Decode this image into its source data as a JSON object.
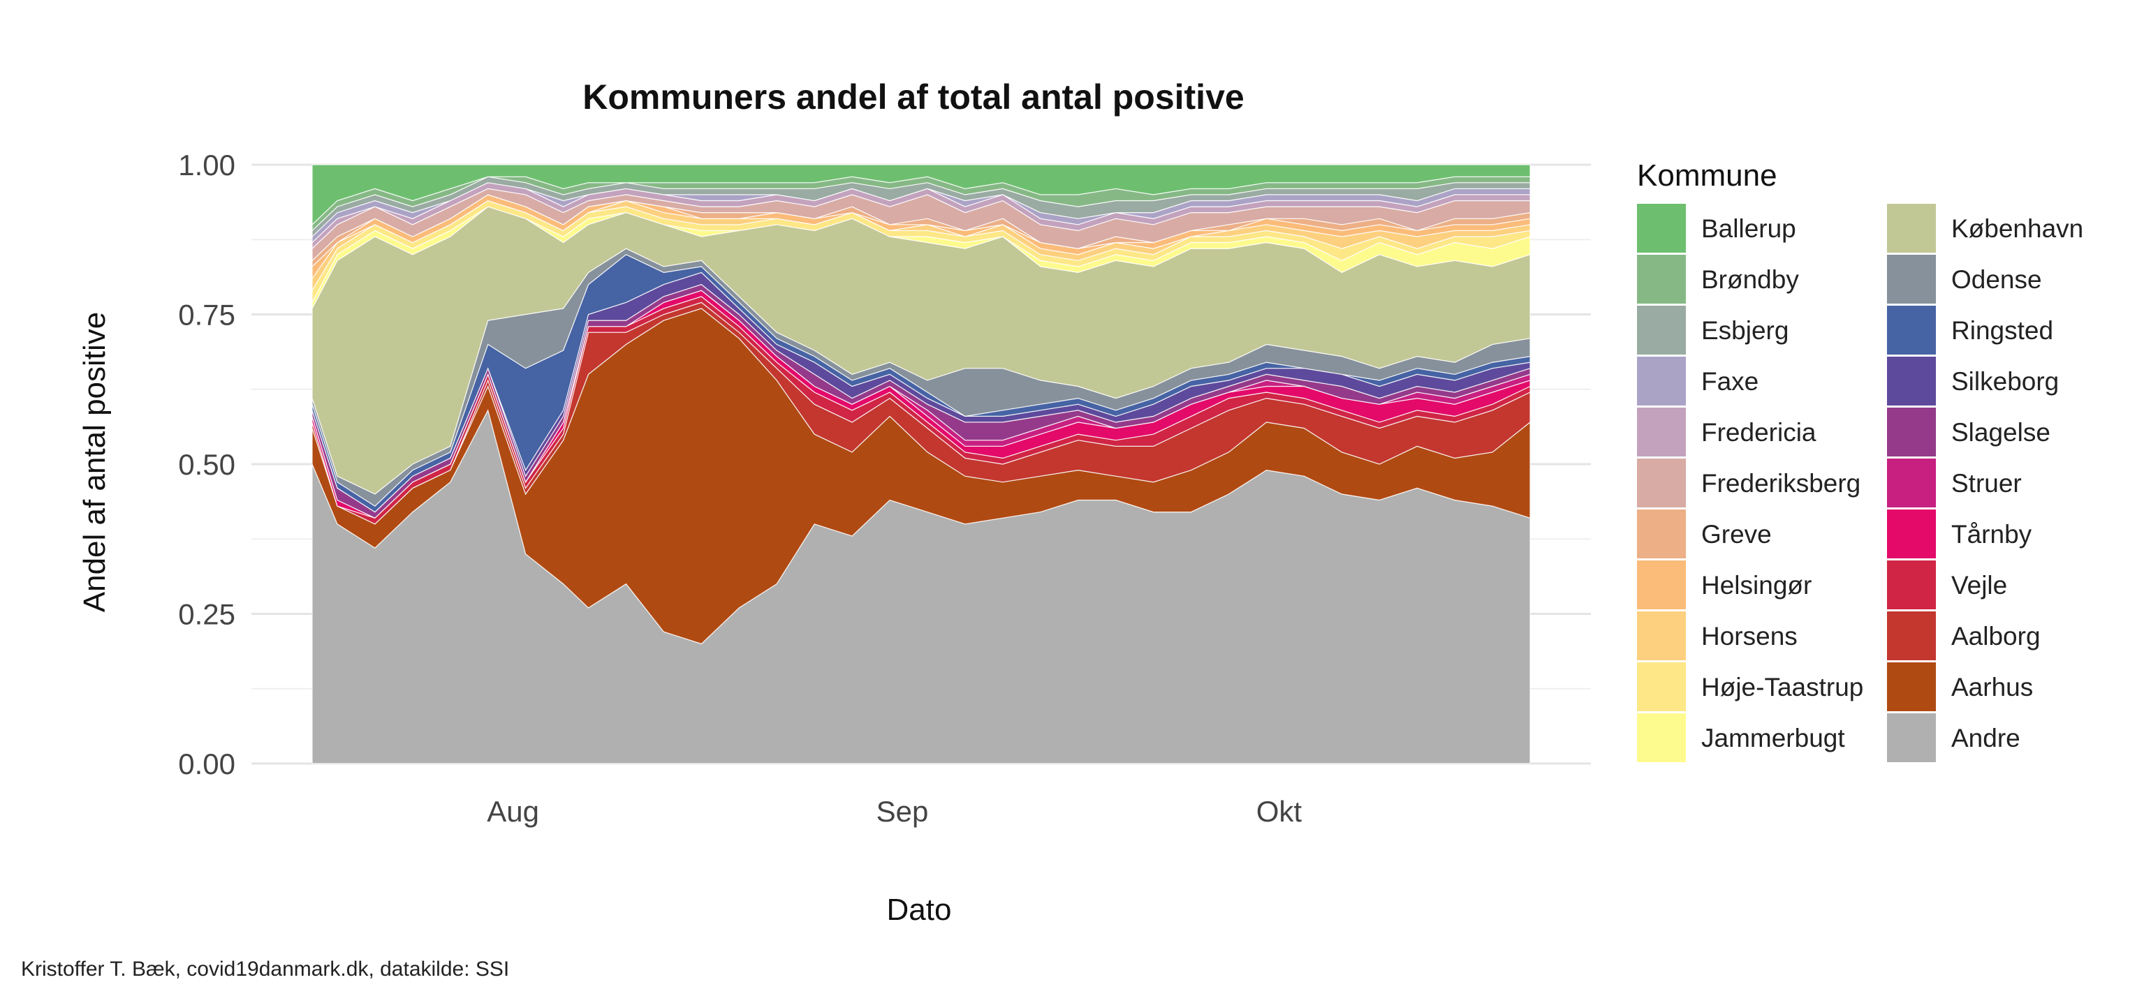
{
  "chart_data": {
    "type": "area",
    "title": "Kommuners andel af total antal positive",
    "xlabel": "Dato",
    "ylabel": "Andel af antal positive",
    "caption": "Kristoffer T. Bæk, covid19danmark.dk, datakilde: SSI",
    "x_start": "2020-07-16",
    "x_end": "2020-10-21",
    "x_ticks": [
      {
        "date": "2020-08-01",
        "label": "Aug"
      },
      {
        "date": "2020-09-01",
        "label": "Sep"
      },
      {
        "date": "2020-10-01",
        "label": "Okt"
      }
    ],
    "ylim": [
      0,
      1
    ],
    "y_ticks": [
      {
        "value": 0,
        "label": "0.00"
      },
      {
        "value": 0.25,
        "label": "0.25"
      },
      {
        "value": 0.5,
        "label": "0.50"
      },
      {
        "value": 0.75,
        "label": "0.75"
      },
      {
        "value": 1,
        "label": "1.00"
      }
    ],
    "grid": true,
    "legend_title": "Kommune",
    "legend_position": "right",
    "legend_items": [
      {
        "name": "Ballerup",
        "color": "#6dbf6f"
      },
      {
        "name": "Brøndby",
        "color": "#86b886"
      },
      {
        "name": "Esbjerg",
        "color": "#99aba2"
      },
      {
        "name": "Faxe",
        "color": "#aba3c6"
      },
      {
        "name": "Fredericia",
        "color": "#c3a2bd"
      },
      {
        "name": "Frederiksberg",
        "color": "#d8aba4"
      },
      {
        "name": "Greve",
        "color": "#ecaf86"
      },
      {
        "name": "Helsingør",
        "color": "#fbbb79"
      },
      {
        "name": "Horsens",
        "color": "#fdd07f"
      },
      {
        "name": "Høje-Taastrup",
        "color": "#fde786"
      },
      {
        "name": "Jammerbugt",
        "color": "#fefb8e"
      },
      {
        "name": "København",
        "color": "#c2c796"
      },
      {
        "name": "Odense",
        "color": "#86919b"
      },
      {
        "name": "Ringsted",
        "color": "#4663a4"
      },
      {
        "name": "Silkeborg",
        "color": "#5e4a9c"
      },
      {
        "name": "Slagelse",
        "color": "#953a8a"
      },
      {
        "name": "Struer",
        "color": "#c72081"
      },
      {
        "name": "Tårnby",
        "color": "#e30a6a"
      },
      {
        "name": "Vejle",
        "color": "#d02545"
      },
      {
        "name": "Aalborg",
        "color": "#c3372f"
      },
      {
        "name": "Aarhus",
        "color": "#b04a13"
      },
      {
        "name": "Andre",
        "color": "#b0b0b0"
      }
    ],
    "series_stack_order": [
      "Andre",
      "Aarhus",
      "Aalborg",
      "Vejle",
      "Tårnby",
      "Struer",
      "Slagelse",
      "Silkeborg",
      "Ringsted",
      "Odense",
      "København",
      "Jammerbugt",
      "Høje-Taastrup",
      "Horsens",
      "Helsingør",
      "Greve",
      "Frederiksberg",
      "Fredericia",
      "Faxe",
      "Esbjerg",
      "Brøndby",
      "Ballerup"
    ],
    "cumulative_dates": [
      "2020-07-16",
      "2020-07-18",
      "2020-07-21",
      "2020-07-24",
      "2020-07-27",
      "2020-07-30",
      "2020-08-02",
      "2020-08-05",
      "2020-08-07",
      "2020-08-10",
      "2020-08-13",
      "2020-08-16",
      "2020-08-19",
      "2020-08-22",
      "2020-08-25",
      "2020-08-28",
      "2020-08-31",
      "2020-09-03",
      "2020-09-06",
      "2020-09-09",
      "2020-09-12",
      "2020-09-15",
      "2020-09-18",
      "2020-09-21",
      "2020-09-24",
      "2020-09-27",
      "2020-09-30",
      "2020-10-03",
      "2020-10-06",
      "2020-10-09",
      "2020-10-12",
      "2020-10-15",
      "2020-10-18",
      "2020-10-21"
    ],
    "cumulative_upper_bounds": {
      "Andre": [
        0.5,
        0.4,
        0.36,
        0.42,
        0.47,
        0.59,
        0.35,
        0.3,
        0.26,
        0.3,
        0.22,
        0.2,
        0.26,
        0.3,
        0.4,
        0.38,
        0.44,
        0.42,
        0.4,
        0.41,
        0.42,
        0.44,
        0.44,
        0.42,
        0.42,
        0.45,
        0.49,
        0.48,
        0.45,
        0.44,
        0.46,
        0.44,
        0.43,
        0.41
      ],
      "Aarhus": [
        0.56,
        0.43,
        0.4,
        0.46,
        0.49,
        0.63,
        0.45,
        0.54,
        0.65,
        0.7,
        0.74,
        0.76,
        0.71,
        0.64,
        0.55,
        0.52,
        0.58,
        0.52,
        0.48,
        0.47,
        0.48,
        0.49,
        0.48,
        0.47,
        0.49,
        0.52,
        0.57,
        0.56,
        0.52,
        0.5,
        0.53,
        0.51,
        0.52,
        0.57
      ],
      "Aalborg": [
        0.57,
        0.43,
        0.4,
        0.46,
        0.49,
        0.64,
        0.46,
        0.55,
        0.72,
        0.72,
        0.75,
        0.77,
        0.72,
        0.66,
        0.6,
        0.57,
        0.61,
        0.56,
        0.51,
        0.5,
        0.52,
        0.54,
        0.53,
        0.53,
        0.56,
        0.59,
        0.61,
        0.6,
        0.58,
        0.56,
        0.58,
        0.57,
        0.59,
        0.62
      ],
      "Vejle": [
        0.57,
        0.43,
        0.41,
        0.47,
        0.5,
        0.65,
        0.47,
        0.56,
        0.73,
        0.73,
        0.76,
        0.78,
        0.73,
        0.67,
        0.62,
        0.59,
        0.62,
        0.57,
        0.52,
        0.51,
        0.53,
        0.55,
        0.54,
        0.55,
        0.58,
        0.61,
        0.62,
        0.61,
        0.59,
        0.57,
        0.59,
        0.58,
        0.6,
        0.63
      ],
      "Tårnby": [
        0.58,
        0.44,
        0.41,
        0.47,
        0.5,
        0.65,
        0.47,
        0.57,
        0.73,
        0.73,
        0.77,
        0.79,
        0.74,
        0.68,
        0.63,
        0.6,
        0.63,
        0.58,
        0.53,
        0.53,
        0.55,
        0.57,
        0.56,
        0.57,
        0.6,
        0.62,
        0.63,
        0.63,
        0.61,
        0.6,
        0.61,
        0.6,
        0.62,
        0.64
      ],
      "Struer": [
        0.58,
        0.44,
        0.41,
        0.47,
        0.5,
        0.65,
        0.47,
        0.57,
        0.73,
        0.73,
        0.77,
        0.79,
        0.74,
        0.68,
        0.63,
        0.6,
        0.63,
        0.59,
        0.54,
        0.54,
        0.56,
        0.58,
        0.56,
        0.57,
        0.6,
        0.62,
        0.64,
        0.63,
        0.61,
        0.6,
        0.62,
        0.61,
        0.63,
        0.65
      ],
      "Slagelse": [
        0.59,
        0.46,
        0.42,
        0.48,
        0.51,
        0.66,
        0.48,
        0.58,
        0.74,
        0.74,
        0.78,
        0.8,
        0.75,
        0.69,
        0.65,
        0.61,
        0.64,
        0.6,
        0.57,
        0.57,
        0.58,
        0.59,
        0.57,
        0.58,
        0.61,
        0.63,
        0.65,
        0.64,
        0.63,
        0.61,
        0.63,
        0.62,
        0.64,
        0.66
      ],
      "Silkeborg": [
        0.59,
        0.46,
        0.42,
        0.48,
        0.51,
        0.66,
        0.49,
        0.59,
        0.75,
        0.77,
        0.8,
        0.82,
        0.76,
        0.7,
        0.67,
        0.63,
        0.65,
        0.61,
        0.58,
        0.58,
        0.59,
        0.6,
        0.58,
        0.6,
        0.63,
        0.64,
        0.66,
        0.66,
        0.65,
        0.63,
        0.65,
        0.64,
        0.66,
        0.67
      ],
      "Ringsted": [
        0.6,
        0.47,
        0.43,
        0.49,
        0.52,
        0.7,
        0.66,
        0.69,
        0.8,
        0.85,
        0.82,
        0.83,
        0.77,
        0.71,
        0.68,
        0.64,
        0.66,
        0.62,
        0.58,
        0.59,
        0.6,
        0.61,
        0.59,
        0.61,
        0.64,
        0.65,
        0.67,
        0.66,
        0.65,
        0.64,
        0.66,
        0.65,
        0.67,
        0.68
      ],
      "Odense": [
        0.61,
        0.48,
        0.45,
        0.5,
        0.53,
        0.74,
        0.75,
        0.76,
        0.82,
        0.86,
        0.83,
        0.84,
        0.78,
        0.72,
        0.69,
        0.65,
        0.67,
        0.64,
        0.66,
        0.66,
        0.64,
        0.63,
        0.61,
        0.63,
        0.66,
        0.67,
        0.7,
        0.69,
        0.68,
        0.66,
        0.68,
        0.67,
        0.7,
        0.71
      ],
      "København": [
        0.76,
        0.84,
        0.88,
        0.85,
        0.88,
        0.93,
        0.91,
        0.87,
        0.9,
        0.92,
        0.9,
        0.88,
        0.89,
        0.9,
        0.89,
        0.91,
        0.88,
        0.87,
        0.86,
        0.88,
        0.83,
        0.82,
        0.84,
        0.83,
        0.86,
        0.86,
        0.87,
        0.86,
        0.82,
        0.85,
        0.83,
        0.84,
        0.83,
        0.85
      ],
      "Jammerbugt": [
        0.77,
        0.85,
        0.89,
        0.86,
        0.89,
        0.93,
        0.91,
        0.88,
        0.91,
        0.92,
        0.9,
        0.89,
        0.89,
        0.9,
        0.89,
        0.91,
        0.88,
        0.88,
        0.87,
        0.88,
        0.84,
        0.83,
        0.85,
        0.84,
        0.87,
        0.87,
        0.88,
        0.87,
        0.84,
        0.87,
        0.85,
        0.87,
        0.86,
        0.88
      ],
      "Høje-Taastrup": [
        0.79,
        0.86,
        0.9,
        0.87,
        0.9,
        0.94,
        0.92,
        0.89,
        0.92,
        0.93,
        0.91,
        0.9,
        0.9,
        0.91,
        0.9,
        0.92,
        0.89,
        0.89,
        0.88,
        0.89,
        0.85,
        0.84,
        0.86,
        0.85,
        0.88,
        0.88,
        0.89,
        0.88,
        0.86,
        0.88,
        0.86,
        0.88,
        0.88,
        0.89
      ],
      "Horsens": [
        0.81,
        0.87,
        0.9,
        0.87,
        0.9,
        0.94,
        0.92,
        0.89,
        0.92,
        0.94,
        0.92,
        0.91,
        0.91,
        0.91,
        0.9,
        0.92,
        0.89,
        0.9,
        0.88,
        0.9,
        0.86,
        0.85,
        0.87,
        0.86,
        0.88,
        0.89,
        0.9,
        0.89,
        0.88,
        0.89,
        0.88,
        0.89,
        0.89,
        0.9
      ],
      "Helsingør": [
        0.83,
        0.87,
        0.91,
        0.88,
        0.91,
        0.95,
        0.93,
        0.9,
        0.93,
        0.94,
        0.93,
        0.91,
        0.91,
        0.92,
        0.91,
        0.92,
        0.9,
        0.9,
        0.89,
        0.9,
        0.87,
        0.86,
        0.87,
        0.87,
        0.89,
        0.89,
        0.91,
        0.9,
        0.89,
        0.9,
        0.89,
        0.9,
        0.9,
        0.91
      ],
      "Greve": [
        0.84,
        0.88,
        0.91,
        0.88,
        0.91,
        0.95,
        0.93,
        0.9,
        0.93,
        0.94,
        0.93,
        0.92,
        0.92,
        0.92,
        0.91,
        0.93,
        0.9,
        0.91,
        0.89,
        0.91,
        0.87,
        0.86,
        0.88,
        0.87,
        0.89,
        0.9,
        0.91,
        0.91,
        0.9,
        0.91,
        0.89,
        0.91,
        0.91,
        0.92
      ],
      "Frederiksberg": [
        0.86,
        0.9,
        0.93,
        0.9,
        0.93,
        0.96,
        0.95,
        0.92,
        0.94,
        0.95,
        0.94,
        0.93,
        0.93,
        0.94,
        0.93,
        0.95,
        0.93,
        0.95,
        0.92,
        0.94,
        0.9,
        0.89,
        0.91,
        0.9,
        0.92,
        0.92,
        0.93,
        0.93,
        0.93,
        0.93,
        0.92,
        0.94,
        0.94,
        0.94
      ],
      "Fredericia": [
        0.87,
        0.91,
        0.93,
        0.91,
        0.94,
        0.97,
        0.96,
        0.93,
        0.95,
        0.96,
        0.95,
        0.94,
        0.94,
        0.95,
        0.94,
        0.96,
        0.94,
        0.96,
        0.93,
        0.95,
        0.91,
        0.9,
        0.92,
        0.91,
        0.93,
        0.93,
        0.94,
        0.94,
        0.94,
        0.94,
        0.93,
        0.95,
        0.95,
        0.95
      ],
      "Faxe": [
        0.88,
        0.92,
        0.94,
        0.92,
        0.94,
        0.97,
        0.96,
        0.94,
        0.95,
        0.96,
        0.95,
        0.95,
        0.95,
        0.95,
        0.94,
        0.96,
        0.94,
        0.96,
        0.94,
        0.95,
        0.92,
        0.91,
        0.92,
        0.92,
        0.94,
        0.94,
        0.95,
        0.95,
        0.95,
        0.95,
        0.94,
        0.96,
        0.96,
        0.96
      ],
      "Esbjerg": [
        0.89,
        0.93,
        0.95,
        0.93,
        0.95,
        0.98,
        0.97,
        0.95,
        0.96,
        0.97,
        0.96,
        0.96,
        0.96,
        0.96,
        0.96,
        0.97,
        0.96,
        0.97,
        0.95,
        0.96,
        0.94,
        0.93,
        0.94,
        0.94,
        0.95,
        0.95,
        0.96,
        0.96,
        0.96,
        0.96,
        0.96,
        0.97,
        0.97,
        0.97
      ],
      "Brøndby": [
        0.9,
        0.94,
        0.96,
        0.94,
        0.96,
        0.98,
        0.98,
        0.96,
        0.97,
        0.97,
        0.97,
        0.97,
        0.97,
        0.97,
        0.97,
        0.98,
        0.97,
        0.98,
        0.96,
        0.97,
        0.95,
        0.95,
        0.96,
        0.95,
        0.96,
        0.96,
        0.97,
        0.97,
        0.97,
        0.97,
        0.97,
        0.98,
        0.98,
        0.98
      ],
      "Ballerup": [
        1,
        1,
        1,
        1,
        1,
        1,
        1,
        1,
        1,
        1,
        1,
        1,
        1,
        1,
        1,
        1,
        1,
        1,
        1,
        1,
        1,
        1,
        1,
        1,
        1,
        1,
        1,
        1,
        1,
        1,
        1,
        1,
        1,
        1
      ]
    }
  }
}
